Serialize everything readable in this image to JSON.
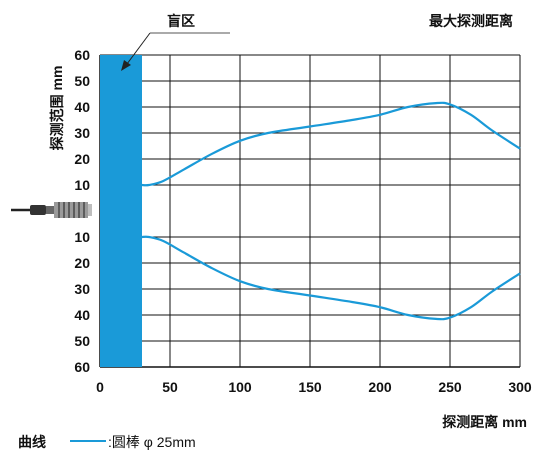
{
  "chart_data": {
    "type": "line",
    "xlabel": "探测距离 mm",
    "ylabel": "探测范围 mm",
    "x_ticks": [
      0,
      50,
      100,
      150,
      200,
      250,
      300
    ],
    "y_ticks_upper": [
      60,
      50,
      40,
      30,
      20,
      10
    ],
    "y_ticks_lower": [
      10,
      20,
      30,
      40,
      50,
      60
    ],
    "xlim": [
      0,
      300
    ],
    "ylim": [
      -60,
      60
    ],
    "grid": true,
    "blind_zone": {
      "label": "盲区",
      "x_range": [
        0,
        30
      ],
      "color": "#1a9ad8"
    },
    "max_distance_label": "最大探测距离",
    "legend": {
      "title": "曲线",
      "entry": ":圆棒 φ 25mm",
      "color": "#1a9ad8"
    },
    "series": [
      {
        "name": "upper",
        "color": "#1a9ad8",
        "x": [
          30,
          35,
          45,
          60,
          80,
          100,
          120,
          150,
          180,
          200,
          220,
          240,
          250,
          265,
          280,
          300
        ],
        "y": [
          10,
          10,
          11.5,
          16,
          22,
          27,
          30,
          32.5,
          35,
          37,
          40,
          41.5,
          41,
          37,
          31,
          24
        ]
      },
      {
        "name": "lower",
        "color": "#1a9ad8",
        "x": [
          30,
          35,
          45,
          60,
          80,
          100,
          120,
          150,
          180,
          200,
          220,
          240,
          250,
          265,
          280,
          300
        ],
        "y": [
          -10,
          -10,
          -11.5,
          -16,
          -22,
          -27,
          -30,
          -32.5,
          -35,
          -37,
          -40,
          -41.5,
          -41,
          -37,
          -31,
          -24
        ]
      }
    ]
  }
}
